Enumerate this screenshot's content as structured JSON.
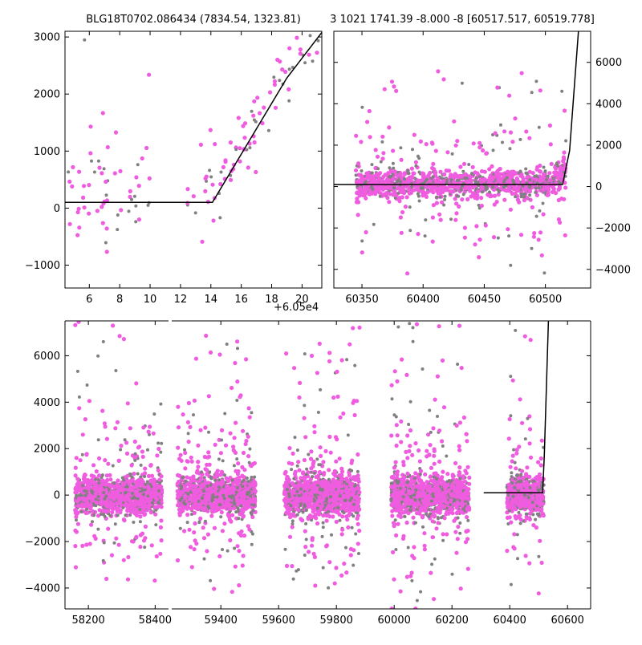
{
  "colors": {
    "magenta": "#f05ce0",
    "gray": "#808080",
    "model": "#000000",
    "axis": "#000000"
  },
  "panels": [
    {
      "id": "zoom",
      "title": "BLG18T0702.086434 (7834.54, 1323.81)",
      "offset_label": "+6.05e4",
      "xlim": [
        4.4,
        21.3
      ],
      "ylim": [
        -1400,
        3100
      ],
      "xticks": [
        6,
        8,
        10,
        12,
        14,
        16,
        18,
        20
      ],
      "yticks": [
        -1000,
        0,
        1000,
        2000,
        3000
      ],
      "yticks_side": "left",
      "model": [
        [
          4.4,
          100
        ],
        [
          14.1,
          100
        ],
        [
          19.0,
          2280
        ],
        [
          21.3,
          3080
        ]
      ],
      "seed": 11
    },
    {
      "id": "season",
      "title": "3 1021 1741.39 -8.000 -8 [60517.517, 60519.778]",
      "xlim": [
        60327,
        60537
      ],
      "ylim": [
        -4900,
        7500
      ],
      "xticks": [
        60350,
        60400,
        60450,
        60500
      ],
      "yticks": [
        -4000,
        -2000,
        0,
        2000,
        4000,
        6000
      ],
      "yticks_side": "right",
      "model": [
        [
          60327,
          100
        ],
        [
          60514,
          100
        ],
        [
          60519.8,
          1740
        ],
        [
          60527,
          7500
        ]
      ],
      "seed": 23
    },
    {
      "id": "full",
      "xlim": [
        58130,
        60680
      ],
      "ylim": [
        -4900,
        7500
      ],
      "xticks": [
        58200,
        58400,
        59400,
        59600,
        59800,
        60000,
        60200,
        60400,
        60600
      ],
      "yticks": [
        -4000,
        -2000,
        0,
        2000,
        4000,
        6000
      ],
      "yticks_side": "left",
      "model": [
        [
          60310,
          100
        ],
        [
          60514,
          100
        ],
        [
          60519.8,
          1740
        ],
        [
          60534,
          7500
        ]
      ],
      "seed": 37
    }
  ]
}
